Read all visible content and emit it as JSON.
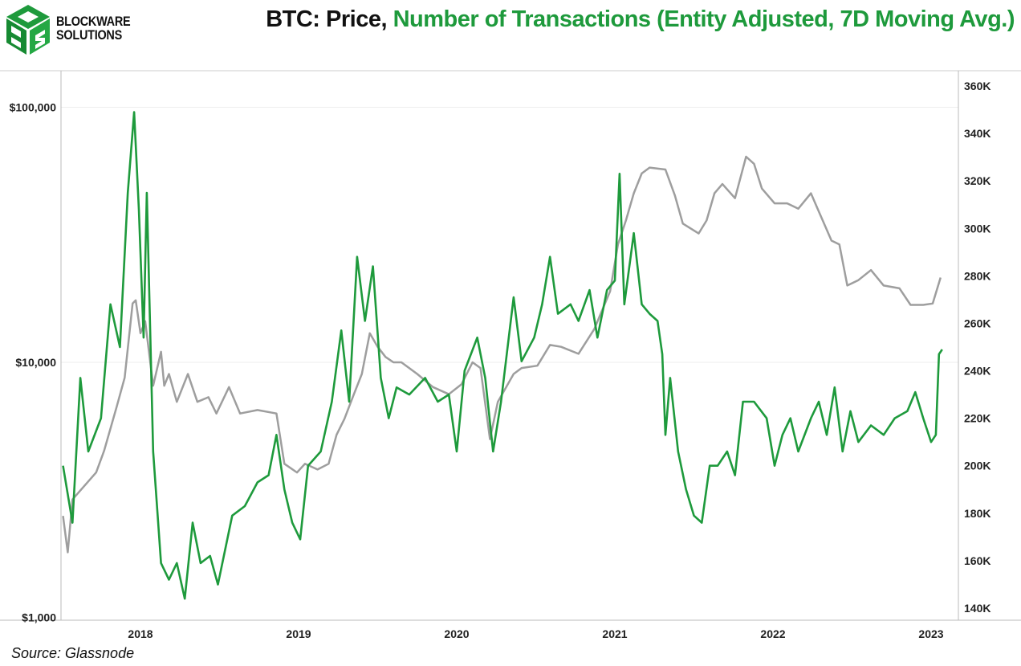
{
  "logo": {
    "line1": "BLOCKWARE",
    "line2": "SOLUTIONS"
  },
  "chart_data": {
    "type": "line",
    "title": {
      "part1": "BTC: Price,",
      "part2": "Number of Transactions (Entity Adjusted, 7D Moving Avg.)"
    },
    "source": "Source: Glassnode",
    "colors": {
      "price": "#9e9e9e",
      "transactions": "#1e9a3c"
    },
    "x_ticks": [
      "2018",
      "2019",
      "2020",
      "2021",
      "2022",
      "2023"
    ],
    "xlim": [
      2017.5,
      2023.1
    ],
    "y_left": {
      "scale": "log",
      "ylim": [
        1000,
        100000
      ],
      "ticks": [
        {
          "value": 100000,
          "label": "$100,000"
        },
        {
          "value": 10000,
          "label": "$10,000"
        },
        {
          "value": 1000,
          "label": "$1,000"
        }
      ]
    },
    "y_right": {
      "ylim": [
        140,
        360
      ],
      "unit": "K",
      "ticks": [
        "360K",
        "340K",
        "320K",
        "300K",
        "280K",
        "260K",
        "240K",
        "220K",
        "200K",
        "180K",
        "160K",
        "140K"
      ]
    },
    "series": [
      {
        "name": "Price (USD)",
        "axis": "left",
        "points": [
          [
            2017.51,
            2500
          ],
          [
            2017.54,
            1800
          ],
          [
            2017.57,
            2900
          ],
          [
            2017.72,
            3700
          ],
          [
            2017.77,
            4500
          ],
          [
            2017.85,
            6700
          ],
          [
            2017.9,
            8700
          ],
          [
            2017.95,
            17000
          ],
          [
            2017.97,
            17500
          ],
          [
            2018.0,
            13000
          ],
          [
            2018.03,
            14500
          ],
          [
            2018.08,
            8100
          ],
          [
            2018.13,
            11000
          ],
          [
            2018.15,
            8100
          ],
          [
            2018.18,
            9000
          ],
          [
            2018.23,
            7000
          ],
          [
            2018.3,
            9000
          ],
          [
            2018.36,
            7000
          ],
          [
            2018.43,
            7300
          ],
          [
            2018.48,
            6300
          ],
          [
            2018.56,
            8000
          ],
          [
            2018.63,
            6300
          ],
          [
            2018.74,
            6500
          ],
          [
            2018.86,
            6300
          ],
          [
            2018.91,
            4000
          ],
          [
            2018.99,
            3700
          ],
          [
            2019.04,
            4000
          ],
          [
            2019.12,
            3800
          ],
          [
            2019.19,
            4000
          ],
          [
            2019.24,
            5200
          ],
          [
            2019.29,
            6000
          ],
          [
            2019.35,
            7500
          ],
          [
            2019.4,
            9000
          ],
          [
            2019.45,
            13000
          ],
          [
            2019.5,
            11500
          ],
          [
            2019.55,
            10500
          ],
          [
            2019.6,
            10000
          ],
          [
            2019.65,
            10000
          ],
          [
            2019.75,
            9000
          ],
          [
            2019.85,
            8000
          ],
          [
            2019.95,
            7500
          ],
          [
            2020.03,
            8200
          ],
          [
            2020.1,
            10000
          ],
          [
            2020.15,
            9500
          ],
          [
            2020.21,
            5000
          ],
          [
            2020.26,
            7000
          ],
          [
            2020.36,
            9000
          ],
          [
            2020.41,
            9500
          ],
          [
            2020.51,
            9700
          ],
          [
            2020.59,
            11700
          ],
          [
            2020.66,
            11500
          ],
          [
            2020.77,
            10800
          ],
          [
            2020.87,
            13500
          ],
          [
            2020.97,
            19000
          ],
          [
            2021.02,
            29000
          ],
          [
            2021.07,
            36000
          ],
          [
            2021.12,
            46000
          ],
          [
            2021.17,
            55000
          ],
          [
            2021.22,
            58000
          ],
          [
            2021.32,
            57000
          ],
          [
            2021.38,
            45000
          ],
          [
            2021.43,
            35000
          ],
          [
            2021.53,
            32000
          ],
          [
            2021.58,
            36000
          ],
          [
            2021.63,
            46000
          ],
          [
            2021.68,
            50000
          ],
          [
            2021.76,
            44000
          ],
          [
            2021.83,
            64000
          ],
          [
            2021.88,
            60000
          ],
          [
            2021.93,
            48000
          ],
          [
            2022.01,
            42000
          ],
          [
            2022.09,
            42000
          ],
          [
            2022.16,
            40000
          ],
          [
            2022.24,
            46000
          ],
          [
            2022.29,
            39000
          ],
          [
            2022.37,
            30000
          ],
          [
            2022.42,
            29000
          ],
          [
            2022.47,
            20000
          ],
          [
            2022.54,
            21000
          ],
          [
            2022.62,
            23000
          ],
          [
            2022.7,
            20000
          ],
          [
            2022.8,
            19500
          ],
          [
            2022.87,
            16800
          ],
          [
            2022.95,
            16800
          ],
          [
            2023.01,
            17000
          ],
          [
            2023.06,
            21500
          ]
        ]
      },
      {
        "name": "Number of Transactions (K)",
        "axis": "right",
        "points": [
          [
            2017.51,
            200
          ],
          [
            2017.57,
            176
          ],
          [
            2017.62,
            237
          ],
          [
            2017.67,
            206
          ],
          [
            2017.75,
            220
          ],
          [
            2017.81,
            268
          ],
          [
            2017.87,
            250
          ],
          [
            2017.92,
            315
          ],
          [
            2017.96,
            349
          ],
          [
            2017.99,
            308
          ],
          [
            2018.02,
            254
          ],
          [
            2018.04,
            315
          ],
          [
            2018.08,
            206
          ],
          [
            2018.13,
            159
          ],
          [
            2018.18,
            152
          ],
          [
            2018.23,
            159
          ],
          [
            2018.28,
            144
          ],
          [
            2018.33,
            176
          ],
          [
            2018.38,
            159
          ],
          [
            2018.44,
            162
          ],
          [
            2018.49,
            150
          ],
          [
            2018.58,
            179
          ],
          [
            2018.66,
            183
          ],
          [
            2018.74,
            193
          ],
          [
            2018.81,
            196
          ],
          [
            2018.86,
            213
          ],
          [
            2018.91,
            190
          ],
          [
            2018.96,
            176
          ],
          [
            2019.01,
            169
          ],
          [
            2019.06,
            200
          ],
          [
            2019.14,
            206
          ],
          [
            2019.21,
            227
          ],
          [
            2019.27,
            257
          ],
          [
            2019.32,
            227
          ],
          [
            2019.37,
            288
          ],
          [
            2019.42,
            261
          ],
          [
            2019.47,
            284
          ],
          [
            2019.52,
            237
          ],
          [
            2019.57,
            220
          ],
          [
            2019.62,
            233
          ],
          [
            2019.7,
            230
          ],
          [
            2019.8,
            237
          ],
          [
            2019.88,
            227
          ],
          [
            2019.95,
            230
          ],
          [
            2020.0,
            206
          ],
          [
            2020.05,
            240
          ],
          [
            2020.13,
            254
          ],
          [
            2020.18,
            237
          ],
          [
            2020.23,
            206
          ],
          [
            2020.28,
            227
          ],
          [
            2020.36,
            271
          ],
          [
            2020.41,
            244
          ],
          [
            2020.49,
            254
          ],
          [
            2020.54,
            268
          ],
          [
            2020.59,
            288
          ],
          [
            2020.64,
            264
          ],
          [
            2020.72,
            268
          ],
          [
            2020.77,
            261
          ],
          [
            2020.84,
            274
          ],
          [
            2020.89,
            254
          ],
          [
            2020.95,
            274
          ],
          [
            2021.0,
            278
          ],
          [
            2021.03,
            323
          ],
          [
            2021.06,
            268
          ],
          [
            2021.12,
            298
          ],
          [
            2021.17,
            268
          ],
          [
            2021.22,
            264
          ],
          [
            2021.27,
            261
          ],
          [
            2021.3,
            247
          ],
          [
            2021.32,
            213
          ],
          [
            2021.35,
            237
          ],
          [
            2021.4,
            206
          ],
          [
            2021.45,
            190
          ],
          [
            2021.5,
            179
          ],
          [
            2021.55,
            176
          ],
          [
            2021.6,
            200
          ],
          [
            2021.65,
            200
          ],
          [
            2021.71,
            206
          ],
          [
            2021.76,
            196
          ],
          [
            2021.81,
            227
          ],
          [
            2021.88,
            227
          ],
          [
            2021.96,
            220
          ],
          [
            2022.01,
            200
          ],
          [
            2022.06,
            213
          ],
          [
            2022.11,
            220
          ],
          [
            2022.16,
            206
          ],
          [
            2022.24,
            220
          ],
          [
            2022.29,
            227
          ],
          [
            2022.34,
            213
          ],
          [
            2022.39,
            233
          ],
          [
            2022.44,
            206
          ],
          [
            2022.49,
            223
          ],
          [
            2022.54,
            210
          ],
          [
            2022.62,
            217
          ],
          [
            2022.7,
            213
          ],
          [
            2022.77,
            220
          ],
          [
            2022.85,
            223
          ],
          [
            2022.9,
            231
          ],
          [
            2022.95,
            220
          ],
          [
            2023.0,
            210
          ],
          [
            2023.03,
            213
          ],
          [
            2023.05,
            247
          ],
          [
            2023.07,
            249
          ]
        ]
      }
    ]
  }
}
